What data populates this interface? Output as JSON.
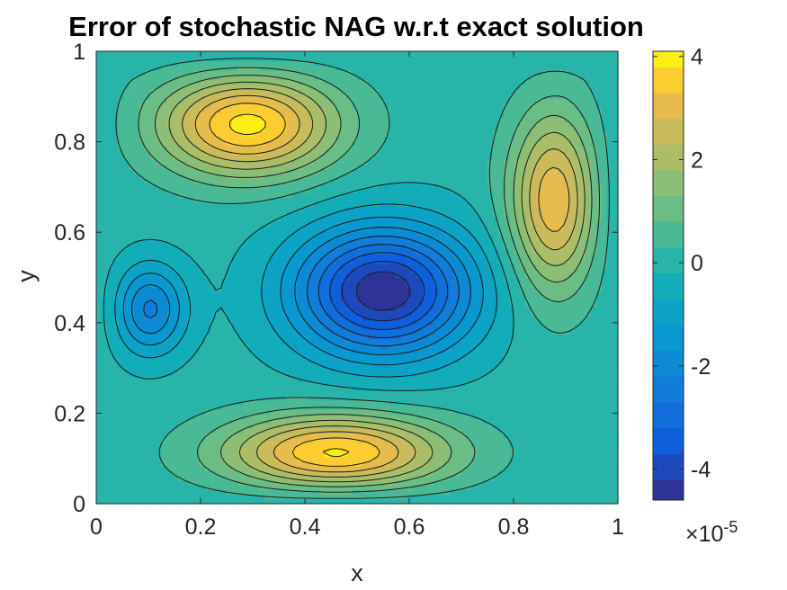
{
  "chart_data": {
    "type": "heatmap",
    "subtype": "filled-contour",
    "title": "Error of stochastic NAG w.r.t exact solution",
    "xlabel": "x",
    "ylabel": "y",
    "xlim": [
      0,
      1
    ],
    "ylim": [
      0,
      1
    ],
    "x_ticks": [
      "0",
      "0.2",
      "0.4",
      "0.6",
      "0.8",
      "1"
    ],
    "y_ticks": [
      "0",
      "0.2",
      "0.4",
      "0.6",
      "0.8",
      "1"
    ],
    "colorbar": {
      "location": "right",
      "colormap": "parula",
      "clim": [
        -4.6,
        4.1
      ],
      "ticks": [
        "-4",
        "-2",
        "0",
        "2",
        "4"
      ],
      "scale_label": "×10",
      "scale_exponent": "-5"
    },
    "contour_levels": [
      -4.2,
      -3.7,
      -3.2,
      -2.7,
      -2.2,
      -1.7,
      -1.2,
      -0.7,
      -0.2,
      0.3,
      0.8,
      1.3,
      1.8,
      2.3,
      2.8,
      3.3,
      3.8
    ],
    "extrema": [
      {
        "kind": "min",
        "x": 0.55,
        "y": 0.47,
        "value": -4.6
      },
      {
        "kind": "min",
        "x": 0.1,
        "y": 0.43,
        "value": -2.4
      },
      {
        "kind": "max",
        "x": 0.29,
        "y": 0.84,
        "value": 4.0
      },
      {
        "kind": "max",
        "x": 0.46,
        "y": 0.11,
        "value": 4.0
      },
      {
        "kind": "max",
        "x": 0.88,
        "y": 0.67,
        "value": 3.3
      }
    ]
  }
}
